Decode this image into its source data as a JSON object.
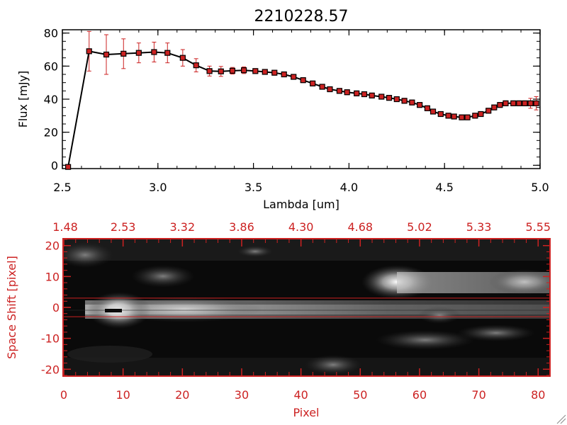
{
  "chart_data": [
    {
      "type": "line",
      "title": "2210228.57",
      "xlabel": "Lambda [um]",
      "ylabel": "Flux [mJy]",
      "xlim": [
        2.5,
        5.0
      ],
      "ylim": [
        -2,
        82
      ],
      "x_ticks": [
        2.5,
        3.0,
        3.5,
        4.0,
        4.5,
        5.0
      ],
      "x_tick_labels": [
        "2.5",
        "3.0",
        "3.5",
        "4.0",
        "4.5",
        "5.0"
      ],
      "y_ticks": [
        0,
        20,
        40,
        60,
        80
      ],
      "y_tick_labels": [
        "0",
        "20",
        "40",
        "60",
        "80"
      ],
      "colors": {
        "line": "#000000",
        "marker": "#cc2222",
        "errorbar": "#cc2222"
      },
      "series": [
        {
          "x": [
            2.53,
            2.64,
            2.73,
            2.82,
            2.9,
            2.98,
            3.05,
            3.13,
            3.2,
            3.27,
            3.33,
            3.39,
            3.45,
            3.51,
            3.56,
            3.61,
            3.66,
            3.71,
            3.76,
            3.81,
            3.86,
            3.9,
            3.95,
            3.99,
            4.04,
            4.08,
            4.12,
            4.17,
            4.21,
            4.25,
            4.29,
            4.33,
            4.37,
            4.41,
            4.44,
            4.48,
            4.52,
            4.55,
            4.59,
            4.62,
            4.66,
            4.69,
            4.73,
            4.76,
            4.79,
            4.82,
            4.86,
            4.89,
            4.92,
            4.95,
            4.98
          ],
          "y": [
            -1,
            69,
            67,
            67.5,
            68,
            68.5,
            68,
            65,
            60.5,
            57,
            56.8,
            57.2,
            57.5,
            57,
            56.5,
            56,
            55,
            53.5,
            51.5,
            49.5,
            47.5,
            46,
            45,
            44.2,
            43.5,
            43,
            42.2,
            41.5,
            40.8,
            40,
            39,
            38,
            36.5,
            34.5,
            32.5,
            31,
            30,
            29.5,
            29,
            29,
            30,
            31,
            33,
            35,
            36.5,
            37.5,
            37.5,
            37.5,
            37.5,
            37.5,
            37.5
          ],
          "yerr": [
            0,
            12,
            12,
            9,
            6,
            6,
            6,
            5,
            4,
            3,
            3,
            2,
            2,
            1.5,
            1.5,
            1.5,
            1.5,
            1.5,
            1.5,
            1.5,
            1.5,
            1.5,
            1.5,
            1.5,
            1.5,
            1.5,
            1.5,
            1.5,
            1.5,
            1.5,
            1.5,
            1.5,
            1.5,
            1.5,
            1.5,
            1.5,
            1.5,
            1.5,
            1.5,
            1.5,
            1.5,
            1.5,
            1.5,
            1.5,
            1.5,
            1.5,
            1.5,
            1.5,
            1.5,
            3,
            4
          ]
        }
      ]
    },
    {
      "type": "heatmap",
      "xlabel": "Pixel",
      "ylabel": "Space Shift [pixel]",
      "xlim": [
        0,
        82
      ],
      "ylim": [
        -22,
        22
      ],
      "x_ticks": [
        0,
        10,
        20,
        30,
        40,
        50,
        60,
        70,
        80
      ],
      "x_tick_labels": [
        "0",
        "10",
        "20",
        "30",
        "40",
        "50",
        "60",
        "70",
        "80"
      ],
      "y_ticks": [
        -20,
        -10,
        0,
        10,
        20
      ],
      "y_tick_labels": [
        "-20",
        "-10",
        "0",
        "10",
        "20"
      ],
      "top_axis_ticks": [
        0,
        10,
        20,
        30,
        40,
        50,
        60,
        70,
        80
      ],
      "top_axis_labels": [
        "1.48",
        "2.53",
        "3.32",
        "3.86",
        "4.30",
        "4.68",
        "5.02",
        "5.33",
        "5.55"
      ],
      "aperture_lines": [
        3,
        -3
      ],
      "colors": {
        "axis": "#cc2222",
        "aperture": "#cc2222",
        "trace_marker": "#000000"
      }
    }
  ]
}
